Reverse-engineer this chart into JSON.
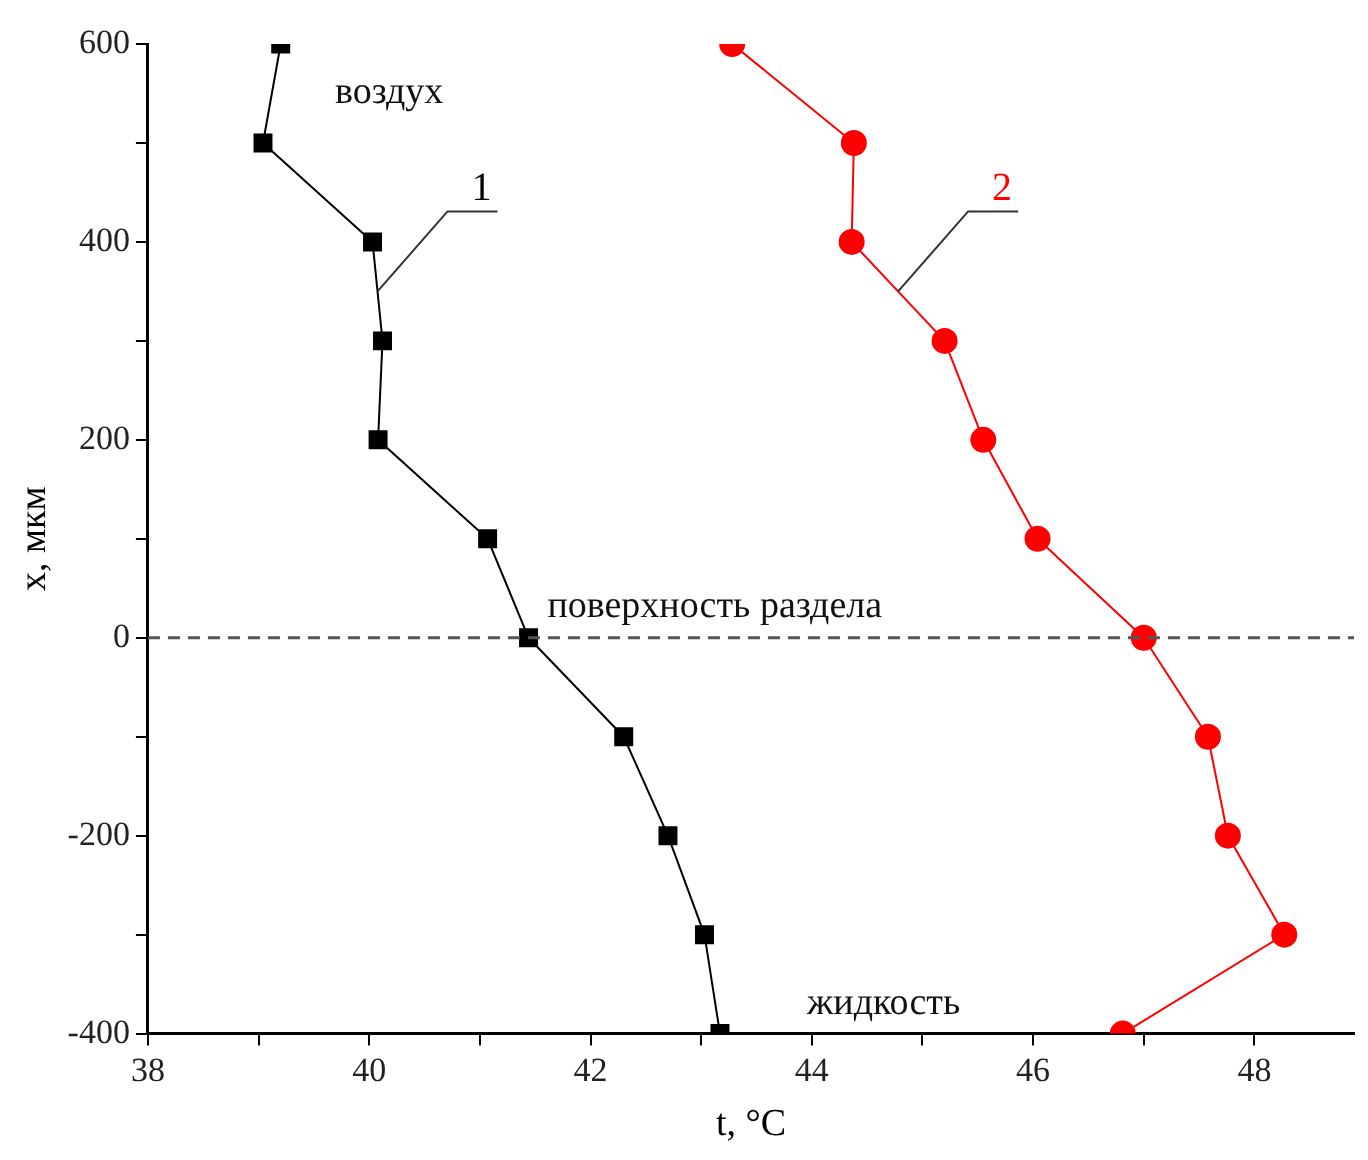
{
  "chart_data": {
    "type": "line",
    "xlabel": "t, °C",
    "ylabel": "x, мкм",
    "xlim": [
      38,
      48.9
    ],
    "xticks": [
      38,
      {
        "value": 39,
        "label": null
      },
      40,
      {
        "value": 41,
        "label": null
      },
      42,
      {
        "value": 43,
        "label": null
      },
      44,
      {
        "value": 45,
        "label": null
      },
      46,
      {
        "value": 47,
        "label": null
      },
      48
    ],
    "ylim": [
      -400,
      600
    ],
    "yticks": [
      -400,
      {
        "value": -300,
        "label": null
      },
      -200,
      {
        "value": -100,
        "label": null
      },
      0,
      {
        "value": 100,
        "label": null
      },
      200,
      {
        "value": 300,
        "label": null
      },
      400,
      {
        "value": 500,
        "label": null
      },
      600
    ],
    "grid": false,
    "legend": false,
    "line_style": "solid",
    "series": [
      {
        "name": "1",
        "color": "#000000",
        "marker": "square",
        "x": [
          39.2,
          39.04,
          40.03,
          40.12,
          40.08,
          41.07,
          41.44,
          42.3,
          42.7,
          43.03,
          43.17
        ],
        "values": [
          600,
          500,
          400,
          300,
          200,
          100,
          0,
          -100,
          -200,
          -300,
          -400
        ]
      },
      {
        "name": "2",
        "color": "#ff0000",
        "marker": "circle",
        "x": [
          43.28,
          44.38,
          44.36,
          45.2,
          45.55,
          46.04,
          47.0,
          47.58,
          47.76,
          48.27,
          46.81
        ],
        "values": [
          600,
          500,
          400,
          300,
          200,
          100,
          0,
          -100,
          -200,
          -300,
          -400
        ]
      }
    ],
    "ref_lines": [
      {
        "axis": "y",
        "value": 0,
        "label": "поверхность раздела",
        "color": "#555555",
        "line_style": "dashed"
      }
    ],
    "annotations": [
      "воздух",
      "жидкость"
    ]
  }
}
